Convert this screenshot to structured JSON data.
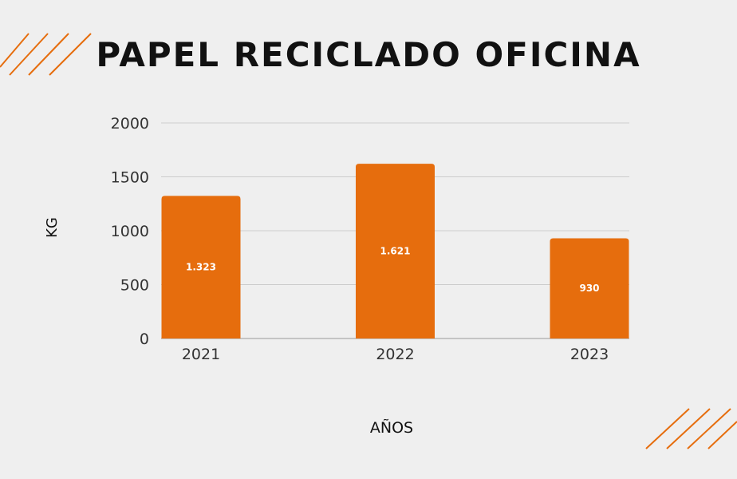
{
  "colors": {
    "background": "#efefef",
    "accent": "#e66d0d",
    "grid": "#cccccc",
    "text": "#333333"
  },
  "chart_data": {
    "type": "bar",
    "title": "PAPEL RECICLADO OFICINA",
    "xlabel": "AÑOS",
    "ylabel": "KG",
    "categories": [
      "2021",
      "2022",
      "2023"
    ],
    "values": [
      1323,
      1621,
      930
    ],
    "data_labels": [
      "1.323",
      "1.621",
      "930"
    ],
    "ylim": [
      0,
      2000
    ],
    "yticks": [
      0,
      500,
      1000,
      1500,
      2000
    ],
    "grid": true,
    "legend": "none"
  },
  "decorations": {
    "top_left": "diagonal-stripes",
    "bottom_right": "diagonal-stripes"
  }
}
